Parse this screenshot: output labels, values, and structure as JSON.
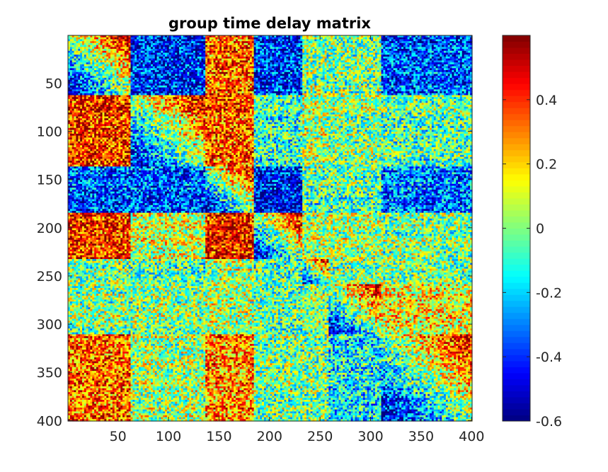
{
  "chart_data": {
    "type": "heatmap",
    "title": "group time delay matrix",
    "xlabel": "",
    "ylabel": "",
    "matrix_size": 400,
    "xlim": [
      1,
      400
    ],
    "ylim": [
      1,
      400
    ],
    "y_direction": "reverse",
    "x_ticks": [
      50,
      100,
      150,
      200,
      250,
      300,
      350,
      400
    ],
    "y_ticks": [
      50,
      100,
      150,
      200,
      250,
      300,
      350,
      400
    ],
    "network_boundaries": [
      1,
      62,
      137,
      185,
      232,
      258,
      310,
      400
    ],
    "colorbar": {
      "colormap": "jet",
      "clim": [
        -0.6,
        0.6
      ],
      "ticks": [
        -0.6,
        -0.4,
        -0.2,
        0,
        0.2,
        0.4
      ],
      "tick_labels": [
        "-0.6",
        "-0.4",
        "-0.2",
        "0",
        "0.2",
        "0.4"
      ],
      "placement": "right"
    },
    "block_mean_delay": [
      [
        0.0,
        -0.4,
        0.35,
        -0.4,
        0.0,
        0.0,
        -0.35
      ],
      [
        0.4,
        0.0,
        0.35,
        -0.1,
        0.05,
        0.0,
        -0.05
      ],
      [
        -0.35,
        -0.35,
        0.0,
        -0.45,
        -0.05,
        -0.05,
        -0.3
      ],
      [
        0.4,
        0.1,
        0.45,
        0.0,
        0.05,
        0.05,
        0.0
      ],
      [
        0.0,
        -0.05,
        0.05,
        -0.05,
        0.0,
        0.0,
        0.0
      ],
      [
        0.0,
        0.0,
        0.05,
        -0.05,
        0.0,
        0.0,
        0.15
      ],
      [
        0.35,
        0.05,
        0.3,
        0.0,
        0.0,
        -0.15,
        0.0
      ]
    ],
    "grid": false
  }
}
